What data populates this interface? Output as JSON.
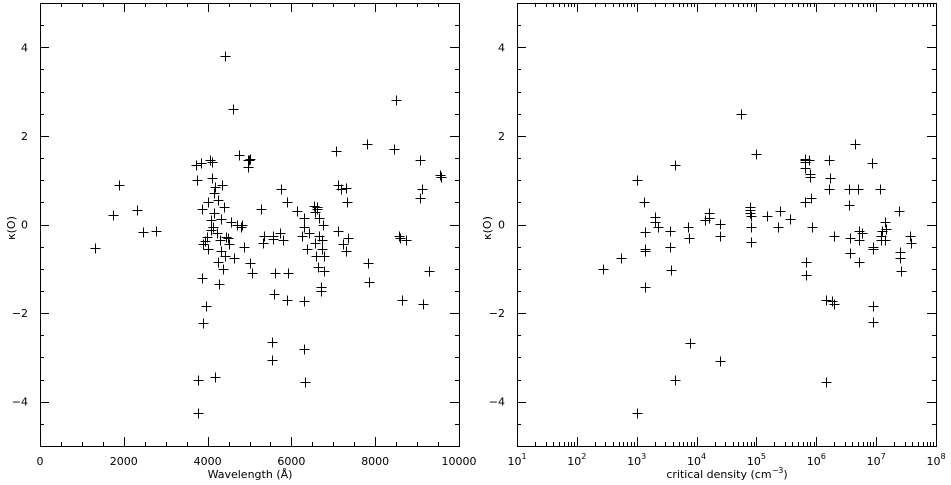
{
  "chart_data": [
    {
      "type": "scatter",
      "marker": "+",
      "title": "",
      "xlabel": "Wavelength (Å)",
      "ylabel": "κ(O)",
      "xlim": [
        0,
        10000
      ],
      "ylim": [
        -5,
        5
      ],
      "x_scale": "linear",
      "grid": false,
      "xticks": [
        0,
        2000,
        4000,
        6000,
        8000,
        10000
      ],
      "xtick_labels": [
        "0",
        "2000",
        "4000",
        "6000",
        "8000",
        "10000"
      ],
      "yticks": [
        -4,
        -2,
        0,
        2,
        4
      ],
      "ytick_labels": [
        "−4",
        "−2",
        "0",
        "2",
        "4"
      ],
      "points": [
        [
          1320,
          -0.52
        ],
        [
          1750,
          0.22
        ],
        [
          1880,
          0.9
        ],
        [
          2320,
          0.32
        ],
        [
          2470,
          -0.18
        ],
        [
          2780,
          -0.15
        ],
        [
          3720,
          1.35
        ],
        [
          3740,
          1.0
        ],
        [
          3760,
          -3.5
        ],
        [
          3760,
          -4.25
        ],
        [
          3840,
          1.38
        ],
        [
          3860,
          0.35
        ],
        [
          3870,
          -1.2
        ],
        [
          3900,
          -0.45
        ],
        [
          3900,
          -2.22
        ],
        [
          3940,
          -0.38
        ],
        [
          3970,
          -1.85
        ],
        [
          3990,
          -0.28
        ],
        [
          4000,
          -0.55
        ],
        [
          4020,
          0.5
        ],
        [
          4050,
          1.45
        ],
        [
          4070,
          0.1
        ],
        [
          4080,
          -0.12
        ],
        [
          4100,
          1.4
        ],
        [
          4100,
          1.05
        ],
        [
          4130,
          -0.05
        ],
        [
          4150,
          0.25
        ],
        [
          4160,
          0.7
        ],
        [
          4170,
          -3.45
        ],
        [
          4180,
          0.85
        ],
        [
          4220,
          -0.2
        ],
        [
          4250,
          0.55
        ],
        [
          4260,
          -0.85
        ],
        [
          4280,
          -1.35
        ],
        [
          4290,
          -0.35
        ],
        [
          4310,
          0.12
        ],
        [
          4330,
          -0.6
        ],
        [
          4350,
          0.9
        ],
        [
          4370,
          -1.0
        ],
        [
          4390,
          0.4
        ],
        [
          4410,
          -0.7
        ],
        [
          4420,
          3.8
        ],
        [
          4440,
          -0.28
        ],
        [
          4480,
          -0.3
        ],
        [
          4500,
          -0.45
        ],
        [
          4550,
          0.05
        ],
        [
          4610,
          2.6
        ],
        [
          4630,
          -0.75
        ],
        [
          4700,
          0.0
        ],
        [
          4760,
          1.58
        ],
        [
          4790,
          -0.05
        ],
        [
          4830,
          0.0
        ],
        [
          4860,
          -0.5
        ],
        [
          4960,
          1.45
        ],
        [
          4960,
          1.3
        ],
        [
          4980,
          1.45
        ],
        [
          5010,
          -0.88
        ],
        [
          5020,
          1.48
        ],
        [
          5050,
          -1.1
        ],
        [
          5280,
          0.35
        ],
        [
          5330,
          -0.42
        ],
        [
          5340,
          -0.25
        ],
        [
          5530,
          -3.05
        ],
        [
          5540,
          -2.65
        ],
        [
          5560,
          -0.32
        ],
        [
          5570,
          -0.25
        ],
        [
          5590,
          -1.58
        ],
        [
          5620,
          -1.1
        ],
        [
          5730,
          -0.2
        ],
        [
          5760,
          0.8
        ],
        [
          5800,
          -0.35
        ],
        [
          5890,
          -1.7
        ],
        [
          5900,
          0.5
        ],
        [
          5930,
          -1.1
        ],
        [
          6140,
          0.3
        ],
        [
          6260,
          -0.25
        ],
        [
          6290,
          -1.72
        ],
        [
          6300,
          0.15
        ],
        [
          6300,
          -0.05
        ],
        [
          6310,
          -2.8
        ],
        [
          6320,
          -3.55
        ],
        [
          6370,
          -0.55
        ],
        [
          6420,
          -0.2
        ],
        [
          6540,
          0.42
        ],
        [
          6560,
          0.28
        ],
        [
          6570,
          -0.42
        ],
        [
          6580,
          -0.72
        ],
        [
          6600,
          0.4
        ],
        [
          6620,
          0.35
        ],
        [
          6630,
          -0.95
        ],
        [
          6650,
          -0.25
        ],
        [
          6660,
          0.15
        ],
        [
          6700,
          -1.4
        ],
        [
          6710,
          -1.5
        ],
        [
          6730,
          -0.35
        ],
        [
          6730,
          -0.55
        ],
        [
          6760,
          -0.02
        ],
        [
          6780,
          -1.05
        ],
        [
          6770,
          -0.7
        ],
        [
          7060,
          1.65
        ],
        [
          7110,
          0.9
        ],
        [
          7120,
          -0.15
        ],
        [
          7190,
          0.8
        ],
        [
          7240,
          -0.45
        ],
        [
          7300,
          0.82
        ],
        [
          7310,
          -0.6
        ],
        [
          7330,
          0.5
        ],
        [
          7340,
          -0.3
        ],
        [
          7810,
          1.82
        ],
        [
          7840,
          -0.88
        ],
        [
          7860,
          -1.3
        ],
        [
          8440,
          1.7
        ],
        [
          8500,
          2.8
        ],
        [
          8560,
          -0.25
        ],
        [
          8580,
          -0.3
        ],
        [
          8650,
          -1.7
        ],
        [
          8740,
          -0.35
        ],
        [
          9060,
          1.45
        ],
        [
          9080,
          0.6
        ],
        [
          9110,
          0.8
        ],
        [
          9150,
          -1.8
        ],
        [
          9290,
          -1.05
        ],
        [
          9540,
          1.12
        ],
        [
          9560,
          1.08
        ]
      ]
    },
    {
      "type": "scatter",
      "marker": "+",
      "title": "",
      "xlabel": "critical density (cm⁻³)",
      "ylabel": "κ(O)",
      "xlim": [
        10,
        100000000
      ],
      "ylim": [
        -5,
        5
      ],
      "x_scale": "log",
      "grid": false,
      "xticks": [
        10,
        100,
        1000,
        10000,
        100000,
        1000000,
        10000000,
        100000000
      ],
      "xtick_labels": [
        {
          "base": "10",
          "exp": "1"
        },
        {
          "base": "10",
          "exp": "2"
        },
        {
          "base": "10",
          "exp": "3"
        },
        {
          "base": "10",
          "exp": "4"
        },
        {
          "base": "10",
          "exp": "5"
        },
        {
          "base": "10",
          "exp": "6"
        },
        {
          "base": "10",
          "exp": "7"
        },
        {
          "base": "10",
          "exp": "8"
        }
      ],
      "yticks": [
        -4,
        -2,
        0,
        2,
        4
      ],
      "ytick_labels": [
        "−4",
        "−2",
        "0",
        "2",
        "4"
      ],
      "points": [
        [
          275,
          -1.0
        ],
        [
          540,
          -0.75
        ],
        [
          1000,
          1.0
        ],
        [
          1000,
          -4.25
        ],
        [
          1300,
          0.5
        ],
        [
          1350,
          -1.4
        ],
        [
          1370,
          -0.6
        ],
        [
          1400,
          -0.55
        ],
        [
          1400,
          -0.18
        ],
        [
          2000,
          0.18
        ],
        [
          2050,
          0.05
        ],
        [
          2300,
          -0.05
        ],
        [
          3550,
          -0.15
        ],
        [
          3600,
          -0.5
        ],
        [
          3700,
          -1.02
        ],
        [
          4300,
          1.35
        ],
        [
          4400,
          -3.5
        ],
        [
          7200,
          -0.05
        ],
        [
          7500,
          -0.3
        ],
        [
          7700,
          -2.68
        ],
        [
          13700,
          0.1
        ],
        [
          15900,
          0.25
        ],
        [
          16300,
          0.15
        ],
        [
          24600,
          -0.25
        ],
        [
          25000,
          0.02
        ],
        [
          25000,
          -3.08
        ],
        [
          56000,
          2.5
        ],
        [
          78000,
          0.4
        ],
        [
          79000,
          0.32
        ],
        [
          79000,
          0.25
        ],
        [
          80000,
          0.2
        ],
        [
          82000,
          -0.05
        ],
        [
          82000,
          -0.4
        ],
        [
          100000,
          1.6
        ],
        [
          150000,
          0.2
        ],
        [
          230000,
          -0.05
        ],
        [
          250000,
          0.3
        ],
        [
          360000,
          0.12
        ],
        [
          640000,
          1.48
        ],
        [
          640000,
          1.45
        ],
        [
          650000,
          1.4
        ],
        [
          660000,
          1.28
        ],
        [
          660000,
          0.5
        ],
        [
          670000,
          -0.85
        ],
        [
          680000,
          -1.15
        ],
        [
          750000,
          1.45
        ],
        [
          780000,
          1.15
        ],
        [
          800000,
          1.08
        ],
        [
          820000,
          0.6
        ],
        [
          850000,
          -0.05
        ],
        [
          1450000,
          -3.55
        ],
        [
          1450000,
          -1.7
        ],
        [
          1600000,
          1.45
        ],
        [
          1650000,
          0.8
        ],
        [
          1700000,
          1.05
        ],
        [
          1850000,
          -1.72
        ],
        [
          1950000,
          -1.8
        ],
        [
          2000000,
          -0.25
        ],
        [
          3500000,
          0.8
        ],
        [
          3500000,
          0.45
        ],
        [
          3600000,
          -0.3
        ],
        [
          3700000,
          -0.65
        ],
        [
          4500000,
          1.82
        ],
        [
          5000000,
          0.8
        ],
        [
          5100000,
          -0.15
        ],
        [
          5100000,
          -0.35
        ],
        [
          5200000,
          -0.85
        ],
        [
          5700000,
          -0.2
        ],
        [
          8600000,
          1.38
        ],
        [
          8700000,
          -0.5
        ],
        [
          8800000,
          -0.55
        ],
        [
          8900000,
          -1.85
        ],
        [
          8900000,
          -2.2
        ],
        [
          11700000,
          0.8
        ],
        [
          12000000,
          -0.25
        ],
        [
          12200000,
          -0.35
        ],
        [
          12500000,
          -0.15
        ],
        [
          14200000,
          0.05
        ],
        [
          14300000,
          -0.35
        ],
        [
          14700000,
          -0.1
        ],
        [
          24000000,
          0.3
        ],
        [
          25000000,
          -0.62
        ],
        [
          25500000,
          -0.75
        ],
        [
          26000000,
          -1.05
        ],
        [
          37000000,
          -0.25
        ],
        [
          38000000,
          -0.42
        ]
      ]
    }
  ]
}
